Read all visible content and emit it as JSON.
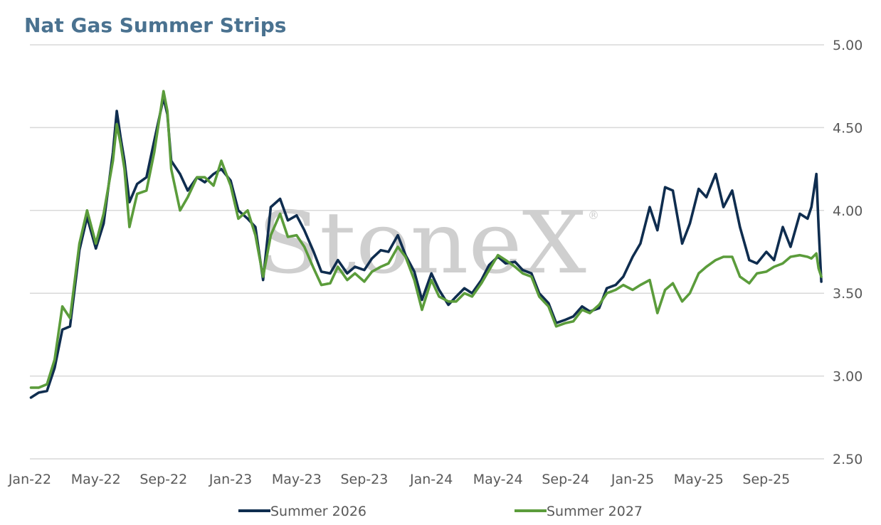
{
  "chart_data": {
    "type": "line",
    "title": "Nat Gas Summer Strips",
    "watermark": "StoneX",
    "watermark_mark": "®",
    "ylim": [
      2.5,
      5.0
    ],
    "y_ticks": [
      "2.50",
      "3.00",
      "3.50",
      "4.00",
      "4.50",
      "5.00"
    ],
    "x_ticks": [
      "Jan-22",
      "May-22",
      "Sep-22",
      "Jan-23",
      "May-23",
      "Sep-23",
      "Jan-24",
      "May-24",
      "Sep-24",
      "Jan-25",
      "May-25",
      "Sep-25"
    ],
    "x_tick_dates": [
      "2022-01-01",
      "2022-05-01",
      "2022-09-01",
      "2023-01-01",
      "2023-05-01",
      "2023-09-01",
      "2024-01-01",
      "2024-05-01",
      "2024-09-01",
      "2025-01-01",
      "2025-05-01",
      "2025-09-01"
    ],
    "xlim": [
      "2022-01-01",
      "2025-12-15"
    ],
    "grid": true,
    "y_axis_side": "right",
    "legend_placement": "bottom",
    "colors": {
      "Summer 2026": "#0f2d4f",
      "Summer 2027": "#5b9c3b"
    },
    "series": [
      {
        "name": "Summer 2026",
        "points": [
          [
            "2022-01-03",
            2.87
          ],
          [
            "2022-01-17",
            2.9
          ],
          [
            "2022-02-01",
            2.91
          ],
          [
            "2022-02-15",
            3.05
          ],
          [
            "2022-03-01",
            3.28
          ],
          [
            "2022-03-15",
            3.3
          ],
          [
            "2022-04-01",
            3.76
          ],
          [
            "2022-04-15",
            3.96
          ],
          [
            "2022-05-01",
            3.77
          ],
          [
            "2022-05-15",
            3.92
          ],
          [
            "2022-06-01",
            4.35
          ],
          [
            "2022-06-08",
            4.6
          ],
          [
            "2022-06-15",
            4.44
          ],
          [
            "2022-06-22",
            4.3
          ],
          [
            "2022-07-01",
            4.05
          ],
          [
            "2022-07-15",
            4.16
          ],
          [
            "2022-08-01",
            4.2
          ],
          [
            "2022-08-15",
            4.42
          ],
          [
            "2022-09-01",
            4.68
          ],
          [
            "2022-09-08",
            4.58
          ],
          [
            "2022-09-15",
            4.3
          ],
          [
            "2022-10-01",
            4.22
          ],
          [
            "2022-10-15",
            4.12
          ],
          [
            "2022-11-01",
            4.2
          ],
          [
            "2022-11-15",
            4.17
          ],
          [
            "2022-12-01",
            4.22
          ],
          [
            "2022-12-15",
            4.25
          ],
          [
            "2023-01-01",
            4.18
          ],
          [
            "2023-01-15",
            4.0
          ],
          [
            "2023-02-01",
            3.95
          ],
          [
            "2023-02-15",
            3.9
          ],
          [
            "2023-03-01",
            3.58
          ],
          [
            "2023-03-15",
            4.02
          ],
          [
            "2023-04-01",
            4.07
          ],
          [
            "2023-04-15",
            3.94
          ],
          [
            "2023-05-01",
            3.97
          ],
          [
            "2023-05-15",
            3.88
          ],
          [
            "2023-06-01",
            3.75
          ],
          [
            "2023-06-15",
            3.63
          ],
          [
            "2023-07-01",
            3.62
          ],
          [
            "2023-07-15",
            3.7
          ],
          [
            "2023-08-01",
            3.62
          ],
          [
            "2023-08-15",
            3.66
          ],
          [
            "2023-09-01",
            3.64
          ],
          [
            "2023-09-15",
            3.71
          ],
          [
            "2023-10-01",
            3.76
          ],
          [
            "2023-10-15",
            3.75
          ],
          [
            "2023-11-01",
            3.85
          ],
          [
            "2023-11-15",
            3.73
          ],
          [
            "2023-12-01",
            3.63
          ],
          [
            "2023-12-15",
            3.46
          ],
          [
            "2024-01-01",
            3.62
          ],
          [
            "2024-01-15",
            3.52
          ],
          [
            "2024-02-01",
            3.43
          ],
          [
            "2024-02-15",
            3.48
          ],
          [
            "2024-03-01",
            3.53
          ],
          [
            "2024-03-15",
            3.5
          ],
          [
            "2024-04-01",
            3.58
          ],
          [
            "2024-04-15",
            3.67
          ],
          [
            "2024-05-01",
            3.72
          ],
          [
            "2024-05-15",
            3.68
          ],
          [
            "2024-06-01",
            3.69
          ],
          [
            "2024-06-15",
            3.64
          ],
          [
            "2024-07-01",
            3.62
          ],
          [
            "2024-07-15",
            3.5
          ],
          [
            "2024-08-01",
            3.44
          ],
          [
            "2024-08-15",
            3.32
          ],
          [
            "2024-09-01",
            3.34
          ],
          [
            "2024-09-15",
            3.36
          ],
          [
            "2024-10-01",
            3.42
          ],
          [
            "2024-10-15",
            3.39
          ],
          [
            "2024-11-01",
            3.41
          ],
          [
            "2024-11-15",
            3.53
          ],
          [
            "2024-12-01",
            3.55
          ],
          [
            "2024-12-15",
            3.6
          ],
          [
            "2025-01-01",
            3.72
          ],
          [
            "2025-01-15",
            3.8
          ],
          [
            "2025-02-01",
            4.02
          ],
          [
            "2025-02-15",
            3.88
          ],
          [
            "2025-03-01",
            4.14
          ],
          [
            "2025-03-15",
            4.12
          ],
          [
            "2025-04-01",
            3.8
          ],
          [
            "2025-04-15",
            3.92
          ],
          [
            "2025-05-01",
            4.13
          ],
          [
            "2025-05-15",
            4.08
          ],
          [
            "2025-06-01",
            4.22
          ],
          [
            "2025-06-15",
            4.02
          ],
          [
            "2025-07-01",
            4.12
          ],
          [
            "2025-07-15",
            3.9
          ],
          [
            "2025-08-01",
            3.7
          ],
          [
            "2025-08-15",
            3.68
          ],
          [
            "2025-09-01",
            3.75
          ],
          [
            "2025-09-15",
            3.7
          ],
          [
            "2025-10-01",
            3.9
          ],
          [
            "2025-10-15",
            3.78
          ],
          [
            "2025-11-01",
            3.98
          ],
          [
            "2025-11-15",
            3.95
          ],
          [
            "2025-11-22",
            4.02
          ],
          [
            "2025-12-01",
            4.22
          ],
          [
            "2025-12-05",
            3.9
          ],
          [
            "2025-12-10",
            3.57
          ]
        ]
      },
      {
        "name": "Summer 2027",
        "points": [
          [
            "2022-01-03",
            2.93
          ],
          [
            "2022-01-17",
            2.93
          ],
          [
            "2022-02-01",
            2.95
          ],
          [
            "2022-02-15",
            3.1
          ],
          [
            "2022-03-01",
            3.42
          ],
          [
            "2022-03-15",
            3.35
          ],
          [
            "2022-04-01",
            3.8
          ],
          [
            "2022-04-15",
            4.0
          ],
          [
            "2022-05-01",
            3.8
          ],
          [
            "2022-05-15",
            3.98
          ],
          [
            "2022-06-01",
            4.3
          ],
          [
            "2022-06-08",
            4.52
          ],
          [
            "2022-06-15",
            4.4
          ],
          [
            "2022-06-22",
            4.25
          ],
          [
            "2022-07-01",
            3.9
          ],
          [
            "2022-07-15",
            4.1
          ],
          [
            "2022-08-01",
            4.12
          ],
          [
            "2022-08-15",
            4.35
          ],
          [
            "2022-09-01",
            4.72
          ],
          [
            "2022-09-08",
            4.6
          ],
          [
            "2022-09-15",
            4.25
          ],
          [
            "2022-10-01",
            4.0
          ],
          [
            "2022-10-15",
            4.08
          ],
          [
            "2022-11-01",
            4.2
          ],
          [
            "2022-11-15",
            4.2
          ],
          [
            "2022-12-01",
            4.15
          ],
          [
            "2022-12-15",
            4.3
          ],
          [
            "2023-01-01",
            4.15
          ],
          [
            "2023-01-15",
            3.95
          ],
          [
            "2023-02-01",
            4.0
          ],
          [
            "2023-02-15",
            3.85
          ],
          [
            "2023-03-01",
            3.6
          ],
          [
            "2023-03-15",
            3.85
          ],
          [
            "2023-04-01",
            3.98
          ],
          [
            "2023-04-15",
            3.84
          ],
          [
            "2023-05-01",
            3.85
          ],
          [
            "2023-05-15",
            3.78
          ],
          [
            "2023-06-01",
            3.65
          ],
          [
            "2023-06-15",
            3.55
          ],
          [
            "2023-07-01",
            3.56
          ],
          [
            "2023-07-15",
            3.66
          ],
          [
            "2023-08-01",
            3.58
          ],
          [
            "2023-08-15",
            3.62
          ],
          [
            "2023-09-01",
            3.57
          ],
          [
            "2023-09-15",
            3.63
          ],
          [
            "2023-10-01",
            3.66
          ],
          [
            "2023-10-15",
            3.68
          ],
          [
            "2023-11-01",
            3.78
          ],
          [
            "2023-11-15",
            3.72
          ],
          [
            "2023-12-01",
            3.58
          ],
          [
            "2023-12-15",
            3.4
          ],
          [
            "2024-01-01",
            3.58
          ],
          [
            "2024-01-15",
            3.48
          ],
          [
            "2024-02-01",
            3.45
          ],
          [
            "2024-02-15",
            3.45
          ],
          [
            "2024-03-01",
            3.5
          ],
          [
            "2024-03-15",
            3.48
          ],
          [
            "2024-04-01",
            3.56
          ],
          [
            "2024-04-15",
            3.64
          ],
          [
            "2024-05-01",
            3.73
          ],
          [
            "2024-05-15",
            3.7
          ],
          [
            "2024-06-01",
            3.66
          ],
          [
            "2024-06-15",
            3.62
          ],
          [
            "2024-07-01",
            3.6
          ],
          [
            "2024-07-15",
            3.48
          ],
          [
            "2024-08-01",
            3.42
          ],
          [
            "2024-08-15",
            3.3
          ],
          [
            "2024-09-01",
            3.32
          ],
          [
            "2024-09-15",
            3.33
          ],
          [
            "2024-10-01",
            3.4
          ],
          [
            "2024-10-15",
            3.38
          ],
          [
            "2024-11-01",
            3.43
          ],
          [
            "2024-11-15",
            3.5
          ],
          [
            "2024-12-01",
            3.52
          ],
          [
            "2024-12-15",
            3.55
          ],
          [
            "2025-01-01",
            3.52
          ],
          [
            "2025-01-15",
            3.55
          ],
          [
            "2025-02-01",
            3.58
          ],
          [
            "2025-02-15",
            3.38
          ],
          [
            "2025-03-01",
            3.52
          ],
          [
            "2025-03-15",
            3.56
          ],
          [
            "2025-04-01",
            3.45
          ],
          [
            "2025-04-15",
            3.5
          ],
          [
            "2025-05-01",
            3.62
          ],
          [
            "2025-05-15",
            3.66
          ],
          [
            "2025-06-01",
            3.7
          ],
          [
            "2025-06-15",
            3.72
          ],
          [
            "2025-07-01",
            3.72
          ],
          [
            "2025-07-15",
            3.6
          ],
          [
            "2025-08-01",
            3.56
          ],
          [
            "2025-08-15",
            3.62
          ],
          [
            "2025-09-01",
            3.63
          ],
          [
            "2025-09-15",
            3.66
          ],
          [
            "2025-10-01",
            3.68
          ],
          [
            "2025-10-15",
            3.72
          ],
          [
            "2025-11-01",
            3.73
          ],
          [
            "2025-11-15",
            3.72
          ],
          [
            "2025-11-22",
            3.71
          ],
          [
            "2025-12-01",
            3.74
          ],
          [
            "2025-12-05",
            3.65
          ],
          [
            "2025-12-10",
            3.6
          ]
        ]
      }
    ]
  }
}
